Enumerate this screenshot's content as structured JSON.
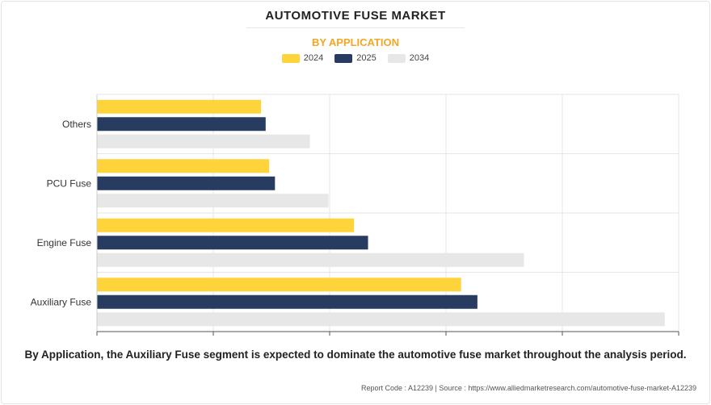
{
  "colors": {
    "y2024": "#ffd43b",
    "y2025": "#283b61",
    "y2034": "#e7e7e7",
    "subtitle": "#f5a623"
  },
  "chart_data": {
    "type": "bar",
    "orientation": "horizontal",
    "title": "AUTOMOTIVE FUSE MARKET",
    "subtitle": "BY APPLICATION",
    "categories": [
      "Others",
      "PCU Fuse",
      "Engine Fuse",
      "Auxiliary Fuse"
    ],
    "series": [
      {
        "name": "2024",
        "values": [
          1.41,
          1.48,
          2.21,
          3.13
        ]
      },
      {
        "name": "2025",
        "values": [
          1.45,
          1.53,
          2.33,
          3.27
        ]
      },
      {
        "name": "2034",
        "values": [
          1.83,
          1.99,
          3.67,
          4.88
        ]
      }
    ],
    "xlim": [
      0,
      5
    ],
    "x_ticks": [
      0,
      1,
      2,
      3,
      4,
      5
    ],
    "tick_labels_visible": false,
    "grid": true,
    "legend_position": "top-center"
  },
  "caption": "By Application, the Auxiliary Fuse segment is expected to dominate the automotive fuse market throughout the analysis period.",
  "footer": "Report Code : A12239  |  Source : https://www.alliedmarketresearch.com/automotive-fuse-market-A12239"
}
